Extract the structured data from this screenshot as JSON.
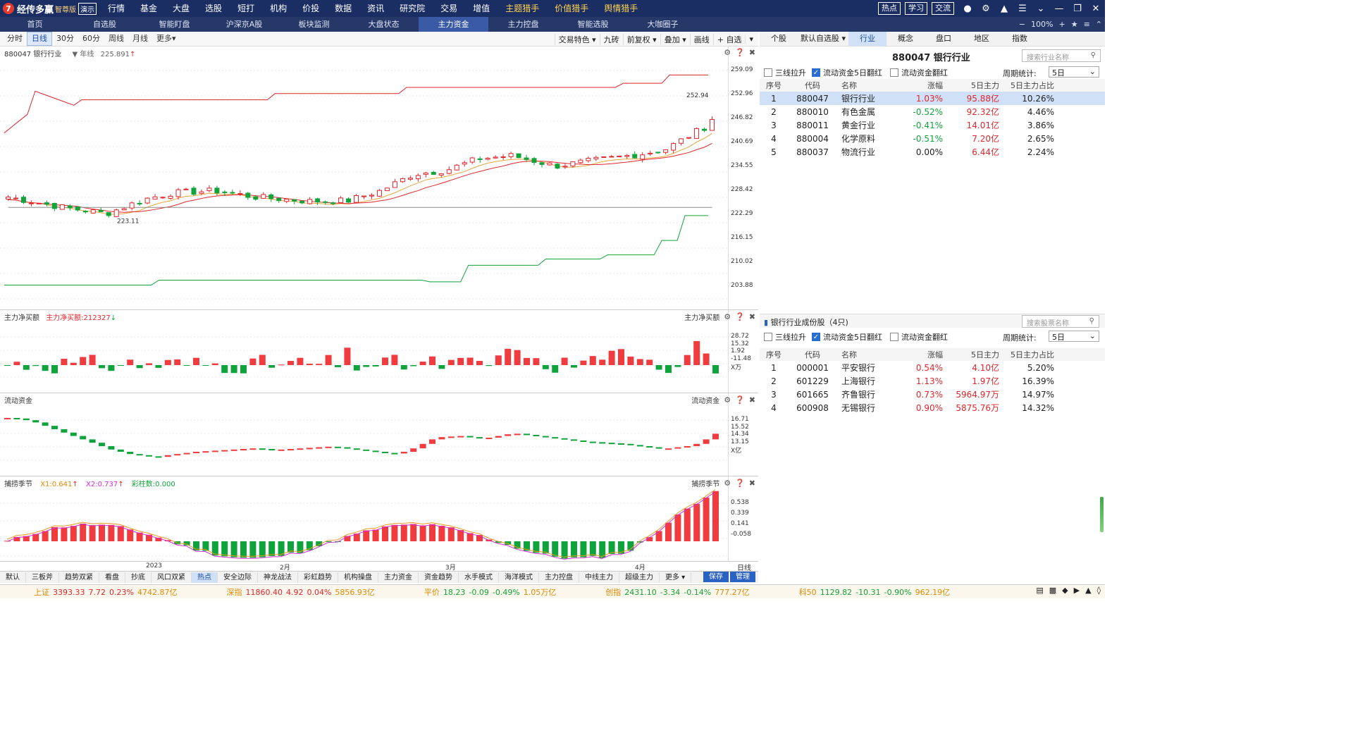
{
  "app": {
    "logo_mark": "7",
    "name": "经传多赢",
    "edition": "智尊版",
    "demo": "演示"
  },
  "top_menu": [
    "行情",
    "基金",
    "大盘",
    "选股",
    "短打",
    "机构",
    "价投",
    "数据",
    "资讯",
    "研究院",
    "交易",
    "增值",
    "主题猎手",
    "价值猎手",
    "舆情猎手"
  ],
  "top_menu_yellow": [
    "主题猎手",
    "价值猎手",
    "舆情猎手"
  ],
  "top_buttons": [
    "热点",
    "学习",
    "交流"
  ],
  "top_icons": [
    "user-icon",
    "gear-icon",
    "shirt-icon",
    "menu-icon",
    "minimize-icon",
    "restore-icon",
    "close-icon"
  ],
  "nav_tabs": [
    "首页",
    "自选股",
    "智能盯盘",
    "沪深京A股",
    "板块监测",
    "大盘状态",
    "主力资金",
    "主力控盘",
    "智能选股",
    "大咖圈子"
  ],
  "nav_active": "主力资金",
  "nav_right": {
    "zoom": "100%"
  },
  "chart_toolbar": {
    "periods": [
      "分时",
      "日线",
      "30分",
      "60分",
      "周线",
      "月线",
      "更多▾"
    ],
    "active": "日线",
    "right": [
      "交易特色 ▾",
      "九砖",
      "前复权 ▾",
      "叠加 ▾",
      "画线",
      "+ 自选",
      "▾"
    ]
  },
  "main_panel": {
    "title": "880047 银行行业",
    "indicator": "年线",
    "indicator_value": "225.891",
    "marker_high": "252.94",
    "marker_low": "223.11",
    "axis": [
      "259.09",
      "252.96",
      "246.82",
      "240.69",
      "234.55",
      "228.42",
      "222.29",
      "216.15",
      "210.02",
      "203.88"
    ]
  },
  "panel2": {
    "title": "主力净买额",
    "value_label": "主力净买额:212327",
    "right_title": "主力净买额",
    "axis": [
      "28.72",
      "15.32",
      "1.92",
      "-11.48",
      "X万"
    ]
  },
  "panel3": {
    "title": "流动资金",
    "right_title": "流动资金",
    "axis": [
      "16.71",
      "15.52",
      "14.34",
      "13.15",
      "X亿"
    ]
  },
  "panel4": {
    "title": "捕捞季节",
    "x1": "X1:0.641",
    "x2": "X2:0.737",
    "color_count": "彩柱数:0.000",
    "right_title": "捕捞季节",
    "axis": [
      "0.538",
      "0.339",
      "0.141",
      "-0.058"
    ]
  },
  "timeline": {
    "labels": [
      "2023",
      "2月",
      "3月",
      "4月"
    ],
    "right": "日线"
  },
  "bottom_tabs": {
    "items": [
      "默认",
      "三板斧",
      "趋势双紧",
      "看盘",
      "抄底",
      "风口双紧",
      "热点",
      "安全边际",
      "神龙战法",
      "彩虹趋势",
      "机构操盘",
      "主力资金",
      "资金趋势",
      "水手模式",
      "海洋模式",
      "主力控盘",
      "中线主力",
      "超级主力",
      "更多 ▾"
    ],
    "active": "热点",
    "right": [
      "保存",
      "管理"
    ]
  },
  "status_bar": [
    {
      "name": "上证",
      "price": "3393.33",
      "chg": "7.72",
      "pct": "0.23%",
      "amt": "4742.87亿",
      "dir": "up"
    },
    {
      "name": "深指",
      "price": "11860.40",
      "chg": "4.92",
      "pct": "0.04%",
      "amt": "5856.93亿",
      "dir": "up"
    },
    {
      "name": "平价",
      "price": "18.23",
      "chg": "-0.09",
      "pct": "-0.49%",
      "amt": "1.05万亿",
      "dir": "down"
    },
    {
      "name": "创指",
      "price": "2431.10",
      "chg": "-3.34",
      "pct": "-0.14%",
      "amt": "777.27亿",
      "dir": "down"
    },
    {
      "name": "科50",
      "price": "1129.82",
      "chg": "-10.31",
      "pct": "-0.90%",
      "amt": "962.19亿",
      "dir": "down"
    }
  ],
  "right_panel": {
    "tabs": [
      "个股",
      "默认自选股 ▾",
      "行业",
      "概念",
      "盘口",
      "地区",
      "指数"
    ],
    "active_tab": "行业",
    "header": "880047  银行行业",
    "search_placeholder": "搜索行业名称",
    "filters": [
      "三线拉升",
      "流动资金5日翻红",
      "流动资金翻红"
    ],
    "filters_checked": [
      false,
      true,
      false
    ],
    "period_label": "周期统计:",
    "period_value": "5日",
    "columns": [
      "序号",
      "代码",
      "名称",
      "涨幅",
      "5日主力",
      "5日主力占比"
    ],
    "rows": [
      {
        "n": "1",
        "code": "880047",
        "name": "银行行业",
        "chg": "1.03%",
        "main": "95.88亿",
        "ratio": "10.26%",
        "dir": "up"
      },
      {
        "n": "2",
        "code": "880010",
        "name": "有色金属",
        "chg": "-0.52%",
        "main": "92.32亿",
        "ratio": "4.46%",
        "dir": "down"
      },
      {
        "n": "3",
        "code": "880011",
        "name": "黄金行业",
        "chg": "-0.41%",
        "main": "14.01亿",
        "ratio": "3.86%",
        "dir": "down"
      },
      {
        "n": "4",
        "code": "880004",
        "name": "化学原料",
        "chg": "-0.51%",
        "main": "7.20亿",
        "ratio": "2.65%",
        "dir": "down"
      },
      {
        "n": "5",
        "code": "880037",
        "name": "物流行业",
        "chg": "0.00%",
        "main": "6.44亿",
        "ratio": "2.24%",
        "dir": "flat"
      }
    ],
    "sub_title": "银行行业成份股（4只)",
    "sub_search_placeholder": "搜索股票名称",
    "sub_rows": [
      {
        "n": "1",
        "code": "000001",
        "name": "平安银行",
        "chg": "0.54%",
        "main": "4.10亿",
        "ratio": "5.20%"
      },
      {
        "n": "2",
        "code": "601229",
        "name": "上海银行",
        "chg": "1.13%",
        "main": "1.97亿",
        "ratio": "16.39%"
      },
      {
        "n": "3",
        "code": "601665",
        "name": "齐鲁银行",
        "chg": "0.73%",
        "main": "5964.97万",
        "ratio": "14.97%"
      },
      {
        "n": "4",
        "code": "600908",
        "name": "无锡银行",
        "chg": "0.90%",
        "main": "5875.76万",
        "ratio": "14.32%"
      }
    ]
  },
  "colors": {
    "up": "#e0262c",
    "down": "#12a33a",
    "accent": "#1b2e63"
  }
}
